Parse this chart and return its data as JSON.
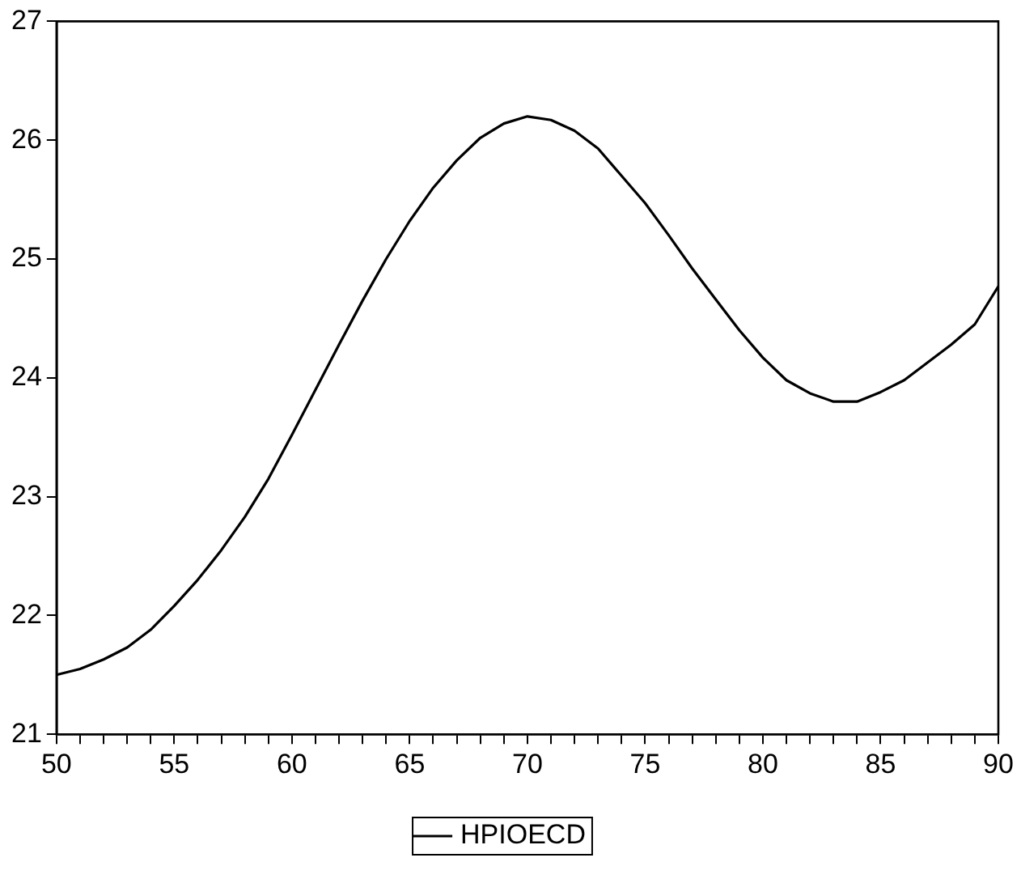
{
  "chart_data": {
    "type": "line",
    "x": [
      50,
      51,
      52,
      53,
      54,
      55,
      56,
      57,
      58,
      59,
      60,
      61,
      62,
      63,
      64,
      65,
      66,
      67,
      68,
      69,
      70,
      71,
      72,
      73,
      74,
      75,
      76,
      77,
      78,
      79,
      80,
      81,
      82,
      83,
      84,
      85,
      86,
      87,
      88,
      89,
      90
    ],
    "series": [
      {
        "name": "HPIOECD",
        "color": "#000000",
        "values": [
          21.5,
          21.55,
          21.63,
          21.73,
          21.88,
          22.08,
          22.3,
          22.55,
          22.83,
          23.15,
          23.52,
          23.9,
          24.28,
          24.65,
          25.0,
          25.32,
          25.6,
          25.83,
          26.02,
          26.14,
          26.2,
          26.17,
          26.08,
          25.93,
          25.7,
          25.47,
          25.2,
          24.92,
          24.66,
          24.4,
          24.17,
          23.98,
          23.87,
          23.8,
          23.8,
          23.88,
          23.98,
          24.13,
          24.28,
          24.45,
          24.77
        ]
      }
    ],
    "xlim": [
      50,
      90
    ],
    "xticks": [
      50,
      {
        "value": 51,
        "label": null
      },
      {
        "value": 52,
        "label": null
      },
      {
        "value": 53,
        "label": null
      },
      {
        "value": 54,
        "label": null
      },
      55,
      {
        "value": 56,
        "label": null
      },
      {
        "value": 57,
        "label": null
      },
      {
        "value": 58,
        "label": null
      },
      {
        "value": 59,
        "label": null
      },
      60,
      {
        "value": 61,
        "label": null
      },
      {
        "value": 62,
        "label": null
      },
      {
        "value": 63,
        "label": null
      },
      {
        "value": 64,
        "label": null
      },
      65,
      {
        "value": 66,
        "label": null
      },
      {
        "value": 67,
        "label": null
      },
      {
        "value": 68,
        "label": null
      },
      {
        "value": 69,
        "label": null
      },
      70,
      {
        "value": 71,
        "label": null
      },
      {
        "value": 72,
        "label": null
      },
      {
        "value": 73,
        "label": null
      },
      {
        "value": 74,
        "label": null
      },
      75,
      {
        "value": 76,
        "label": null
      },
      {
        "value": 77,
        "label": null
      },
      {
        "value": 78,
        "label": null
      },
      {
        "value": 79,
        "label": null
      },
      80,
      {
        "value": 81,
        "label": null
      },
      {
        "value": 82,
        "label": null
      },
      {
        "value": 83,
        "label": null
      },
      {
        "value": 84,
        "label": null
      },
      85,
      {
        "value": 86,
        "label": null
      },
      {
        "value": 87,
        "label": null
      },
      {
        "value": 88,
        "label": null
      },
      {
        "value": 89,
        "label": null
      },
      90
    ],
    "ylim": [
      21,
      27
    ],
    "yticks": [
      21,
      22,
      23,
      24,
      25,
      26,
      27
    ],
    "grid": false,
    "legend": "bottom",
    "marker": "none",
    "line_style": "solid"
  }
}
